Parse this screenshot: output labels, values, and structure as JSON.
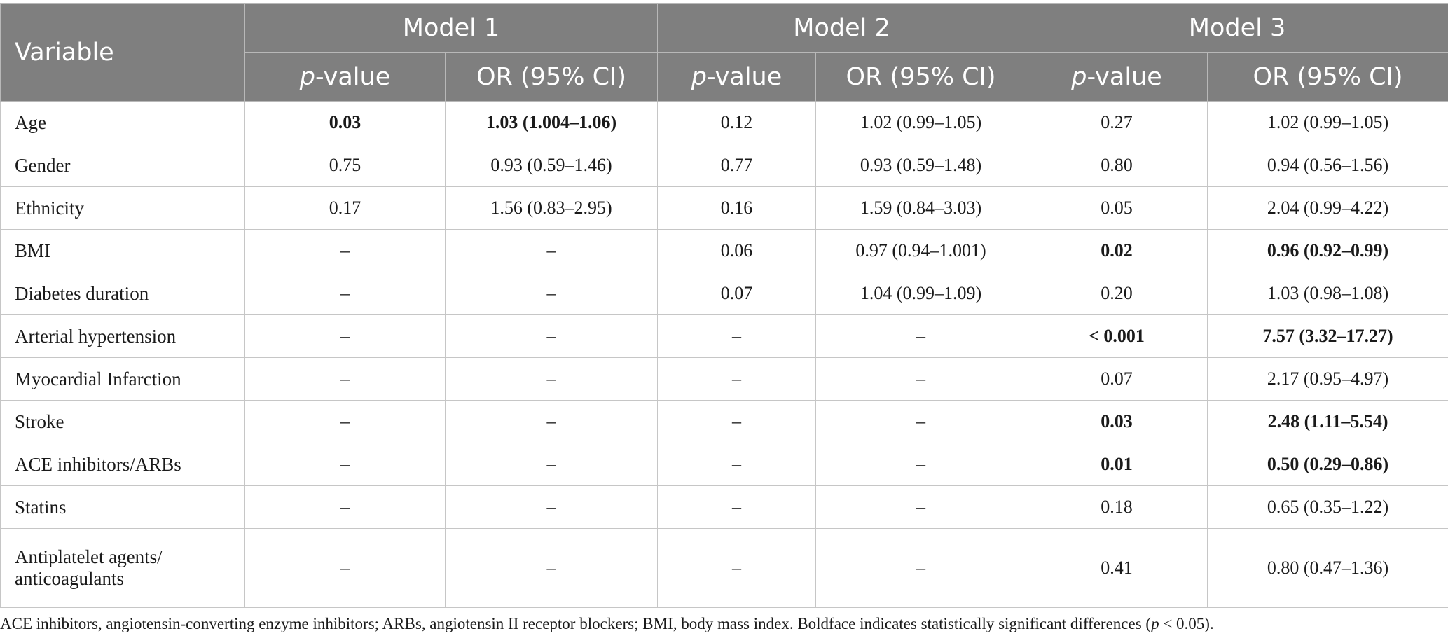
{
  "header": {
    "variable_label": "Variable",
    "models": [
      "Model 1",
      "Model 2",
      "Model 3"
    ],
    "p_italic": "p",
    "p_suffix": "-value",
    "or_label": "OR (95% CI)"
  },
  "rows": [
    {
      "variable": "Age",
      "cells": [
        "0.03",
        "1.03 (1.004–1.06)",
        "0.12",
        "1.02 (0.99–1.05)",
        "0.27",
        "1.02 (0.99–1.05)"
      ],
      "bold": [
        true,
        true,
        false,
        false,
        false,
        false
      ]
    },
    {
      "variable": "Gender",
      "cells": [
        "0.75",
        "0.93 (0.59–1.46)",
        "0.77",
        "0.93 (0.59–1.48)",
        "0.80",
        "0.94 (0.56–1.56)"
      ],
      "bold": [
        false,
        false,
        false,
        false,
        false,
        false
      ]
    },
    {
      "variable": "Ethnicity",
      "cells": [
        "0.17",
        "1.56 (0.83–2.95)",
        "0.16",
        "1.59 (0.84–3.03)",
        "0.05",
        "2.04 (0.99–4.22)"
      ],
      "bold": [
        false,
        false,
        false,
        false,
        false,
        false
      ]
    },
    {
      "variable": "BMI",
      "cells": [
        "–",
        "–",
        "0.06",
        "0.97 (0.94–1.001)",
        "0.02",
        "0.96 (0.92–0.99)"
      ],
      "bold": [
        false,
        false,
        false,
        false,
        true,
        true
      ]
    },
    {
      "variable": "Diabetes duration",
      "cells": [
        "–",
        "–",
        "0.07",
        "1.04 (0.99–1.09)",
        "0.20",
        "1.03 (0.98–1.08)"
      ],
      "bold": [
        false,
        false,
        false,
        false,
        false,
        false
      ]
    },
    {
      "variable": "Arterial hypertension",
      "cells": [
        "–",
        "–",
        "–",
        "–",
        "< 0.001",
        "7.57 (3.32–17.27)"
      ],
      "bold": [
        false,
        false,
        false,
        false,
        true,
        true
      ]
    },
    {
      "variable": "Myocardial Infarction",
      "cells": [
        "–",
        "–",
        "–",
        "–",
        "0.07",
        "2.17 (0.95–4.97)"
      ],
      "bold": [
        false,
        false,
        false,
        false,
        false,
        false
      ]
    },
    {
      "variable": "Stroke",
      "cells": [
        "–",
        "–",
        "–",
        "–",
        "0.03",
        "2.48 (1.11–5.54)"
      ],
      "bold": [
        false,
        false,
        false,
        false,
        true,
        true
      ]
    },
    {
      "variable": "ACE inhibitors/ARBs",
      "cells": [
        "–",
        "–",
        "–",
        "–",
        "0.01",
        "0.50 (0.29–0.86)"
      ],
      "bold": [
        false,
        false,
        false,
        false,
        true,
        true
      ]
    },
    {
      "variable": "Statins",
      "cells": [
        "–",
        "–",
        "–",
        "–",
        "0.18",
        "0.65 (0.35–1.22)"
      ],
      "bold": [
        false,
        false,
        false,
        false,
        false,
        false
      ]
    },
    {
      "variable": "Antiplatelet agents/\nanticoagulants",
      "variable_line1": "Antiplatelet agents/",
      "variable_line2": "anticoagulants",
      "cells": [
        "–",
        "–",
        "–",
        "–",
        "0.41",
        "0.80 (0.47–1.36)"
      ],
      "bold": [
        false,
        false,
        false,
        false,
        false,
        false
      ]
    }
  ],
  "footnote": {
    "text_before": "ACE inhibitors, angiotensin-converting enzyme inhibitors; ARBs, angiotensin II receptor blockers; BMI, body mass index. Boldface indicates statistically significant differences (",
    "p_italic": "p",
    "text_after": " < 0.05)."
  }
}
